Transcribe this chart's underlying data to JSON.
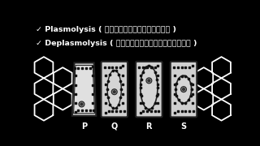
{
  "bg_color": "#000000",
  "text_color": "#ffffff",
  "line1": "✓ Plasmolysis ( जीवद्रव्यकुंचन )",
  "line2": "✓ Deplasmolysis ( जीवद्रव्यविकुंचन )",
  "cell_labels": [
    "P",
    "Q",
    "R",
    "S"
  ],
  "hex_color": "#ffffff",
  "cell_wall_color": "#888888",
  "cell_bg": "#d0d0d0",
  "plasma_color": "#b8b8b8",
  "border_color": "#222222",
  "dot_color": "#111111",
  "nucleus_outer": "#888888",
  "nucleus_inner": "#333333"
}
